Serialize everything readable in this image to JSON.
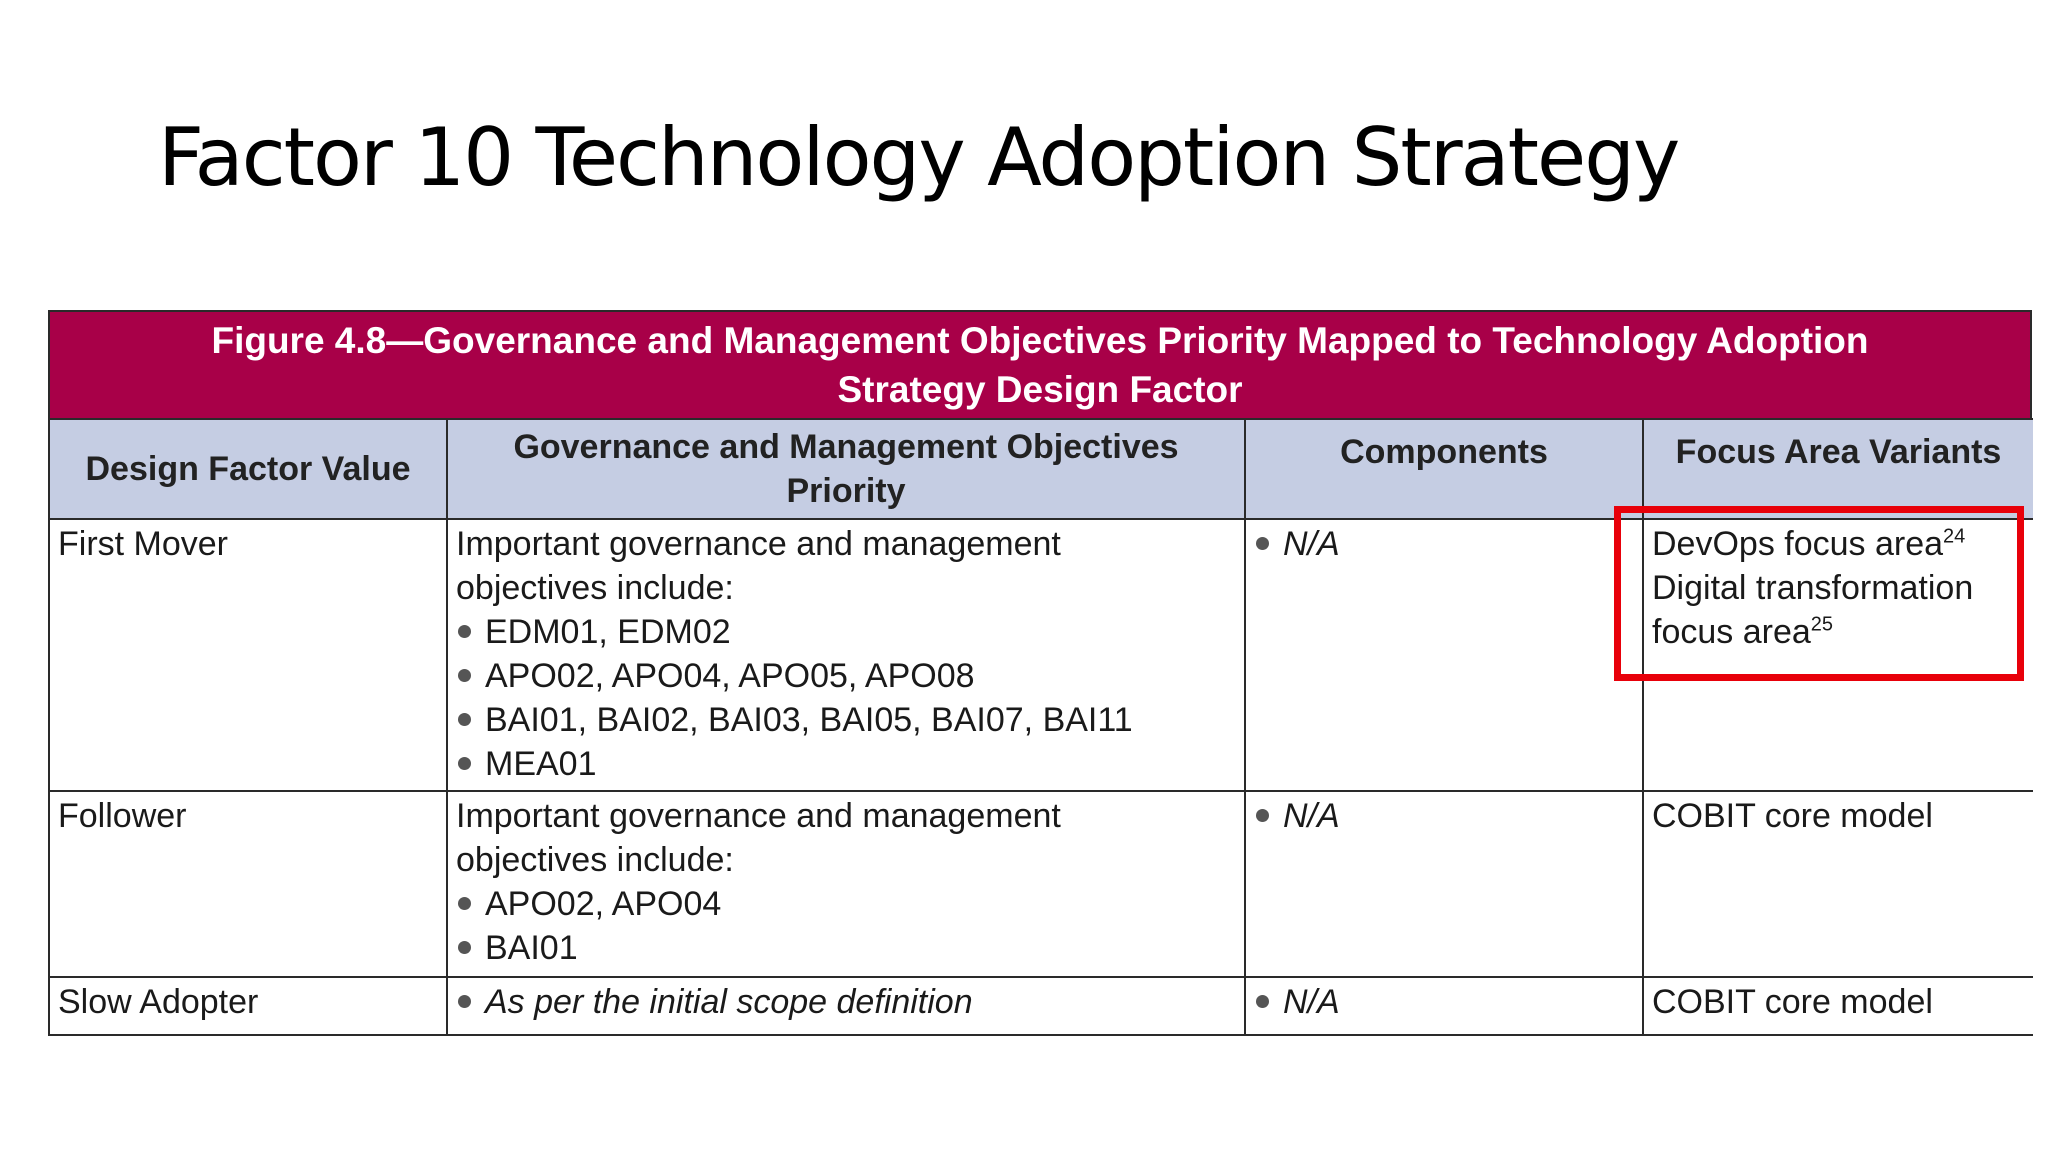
{
  "slide": {
    "title": "Factor 10 Technology Adoption Strategy"
  },
  "figure": {
    "caption_line1": "Figure 4.8—Governance and Management Objectives Priority Mapped to Technology Adoption",
    "caption_line2": "Strategy Design Factor",
    "headers": {
      "col1": "Design Factor Value",
      "col2_line1": "Governance and Management Objectives",
      "col2_line2": "Priority",
      "col3": "Components",
      "col4": "Focus Area Variants"
    },
    "rows": [
      {
        "value": "First Mover",
        "objectives_intro_line1": "Important governance and management",
        "objectives_intro_line2": "objectives include:",
        "objectives": [
          "EDM01, EDM02",
          "APO02, APO04, APO05, APO08",
          "BAI01, BAI02, BAI03, BAI05, BAI07, BAI11",
          "MEA01"
        ],
        "components": "N/A",
        "focus_line1": "DevOps focus area",
        "focus_line1_sup": "24",
        "focus_line2": "Digital transformation",
        "focus_line3": "focus area",
        "focus_line3_sup": "25"
      },
      {
        "value": "Follower",
        "objectives_intro_line1": "Important governance and management",
        "objectives_intro_line2": "objectives include:",
        "objectives": [
          "APO02, APO04",
          "BAI01"
        ],
        "components": "N/A",
        "focus": "COBIT core model"
      },
      {
        "value": "Slow Adopter",
        "objectives_scope": "As per the initial scope definition",
        "components": "N/A",
        "focus": "COBIT core model"
      }
    ]
  },
  "colors": {
    "caption_bg": "#a80048",
    "header_bg": "#c5cde3",
    "highlight": "#e8000a"
  }
}
